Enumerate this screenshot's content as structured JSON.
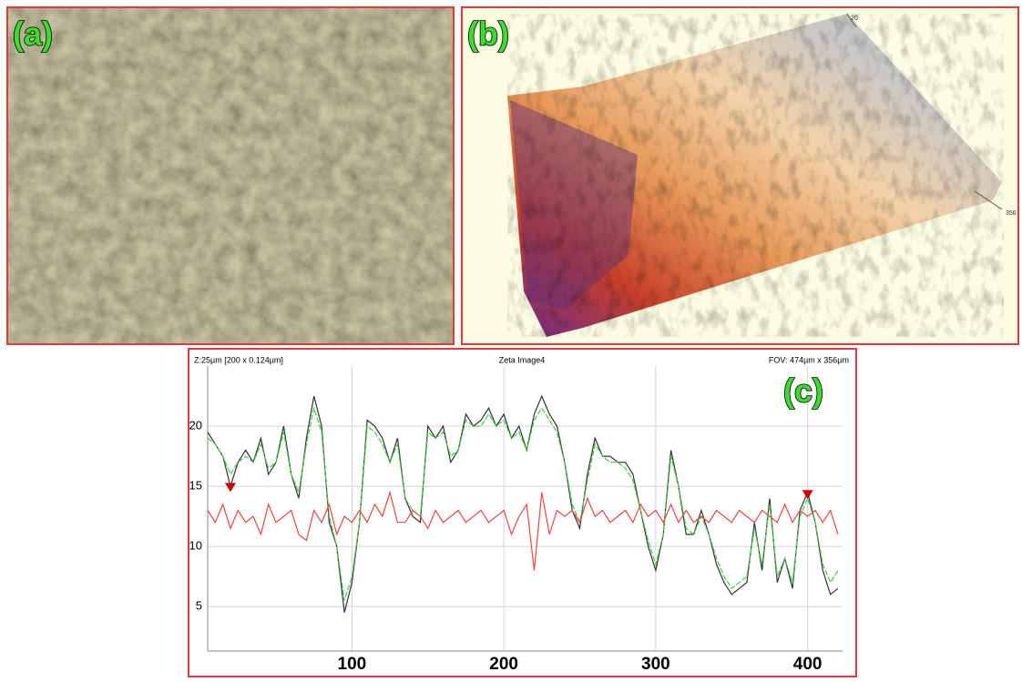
{
  "panel_a": {
    "label": "(a)"
  },
  "panel_b": {
    "label": "(b)",
    "axis_labels": [
      "20",
      "356"
    ]
  },
  "chart_data": {
    "type": "line",
    "panel_label": "(c)",
    "title": "Zeta Image4",
    "header_left": "Z:25µm [200 x 0.124µm]",
    "header_right": "FOV: 474µm x 356µm",
    "x": [
      5,
      10,
      15,
      20,
      25,
      30,
      35,
      40,
      45,
      50,
      55,
      60,
      65,
      70,
      75,
      80,
      85,
      90,
      95,
      100,
      105,
      110,
      115,
      120,
      125,
      130,
      135,
      140,
      145,
      150,
      155,
      160,
      165,
      170,
      175,
      180,
      185,
      190,
      195,
      200,
      205,
      210,
      215,
      220,
      225,
      230,
      235,
      240,
      245,
      250,
      255,
      260,
      265,
      270,
      275,
      280,
      285,
      290,
      295,
      300,
      305,
      310,
      315,
      320,
      325,
      330,
      335,
      340,
      345,
      350,
      355,
      360,
      365,
      370,
      375,
      380,
      385,
      390,
      395,
      400,
      405,
      410,
      415,
      420
    ],
    "series": [
      {
        "color": "#333333",
        "values": [
          19.5,
          18.5,
          17.5,
          15,
          17,
          18,
          17,
          19,
          16,
          17,
          20,
          16,
          14,
          19,
          22.5,
          20,
          12,
          10,
          4.5,
          7,
          12,
          20.5,
          20,
          19,
          17,
          19,
          14,
          12.5,
          12,
          20,
          19,
          20,
          17,
          18,
          21,
          20,
          20.5,
          21.5,
          20,
          21,
          19,
          20,
          18,
          21,
          22.5,
          21,
          20,
          17,
          13,
          11.5,
          16,
          19,
          17.5,
          17.5,
          17,
          17,
          16,
          13,
          10,
          8,
          11,
          18,
          15,
          11,
          11,
          13,
          11,
          8.5,
          7,
          6,
          6.5,
          7,
          12,
          8,
          14,
          7,
          9,
          6.5,
          13,
          14.5,
          12,
          8,
          6,
          6.5
        ]
      },
      {
        "color": "#44cc44",
        "values": [
          19,
          18.5,
          17.5,
          16,
          17,
          17.5,
          17,
          18.5,
          16.5,
          17,
          19.5,
          16,
          14.5,
          18.5,
          21.5,
          19.5,
          12.5,
          10,
          5.5,
          7.5,
          12,
          20,
          19.5,
          18.5,
          17,
          18.5,
          14,
          13,
          12.5,
          19.5,
          19,
          19.5,
          17.5,
          18,
          20.5,
          20,
          20,
          21,
          20,
          20.5,
          19,
          19.5,
          18,
          20.5,
          21.5,
          20.5,
          19.5,
          17,
          13.5,
          12,
          15.5,
          18.5,
          17.5,
          17,
          17,
          16.5,
          15.5,
          13,
          10.5,
          8.5,
          11,
          17.5,
          15,
          11.5,
          11,
          12.5,
          11,
          9,
          7.5,
          6.5,
          7,
          7.5,
          11.5,
          8.5,
          13.5,
          7.5,
          9,
          7,
          12.5,
          14,
          12,
          8.5,
          7,
          8
        ]
      },
      {
        "color": "#ee4444",
        "values": [
          13,
          12,
          13.5,
          11.5,
          13,
          12,
          12.5,
          11,
          13.5,
          12,
          12.5,
          13,
          11,
          10.5,
          13,
          12,
          13.5,
          11,
          12.5,
          12,
          13,
          12,
          13.5,
          12.5,
          14.5,
          12,
          12,
          13,
          12.5,
          11.5,
          13,
          12,
          12.5,
          13,
          12,
          12.5,
          13,
          12,
          12.5,
          13,
          11,
          12.5,
          13.5,
          8,
          14.5,
          11,
          13,
          12.5,
          13,
          12,
          14,
          12.5,
          13,
          12,
          12.5,
          13,
          12,
          13.5,
          12.5,
          13,
          12,
          13.5,
          12,
          13,
          12,
          12.5,
          12,
          13,
          12.5,
          12,
          13,
          12.5,
          12,
          13,
          12.5,
          12,
          13.5,
          12,
          13,
          12.5,
          13,
          12,
          13,
          11
        ]
      }
    ],
    "markers": {
      "color": "#cc0000",
      "x": [
        20,
        400
      ],
      "values": [
        14.9,
        14.3
      ]
    },
    "xlim": [
      5,
      423
    ],
    "ylim": [
      1.3,
      25
    ],
    "xticks": [
      100,
      200,
      300,
      400
    ],
    "yticks": [
      5,
      10,
      15,
      20
    ],
    "grid": true
  }
}
